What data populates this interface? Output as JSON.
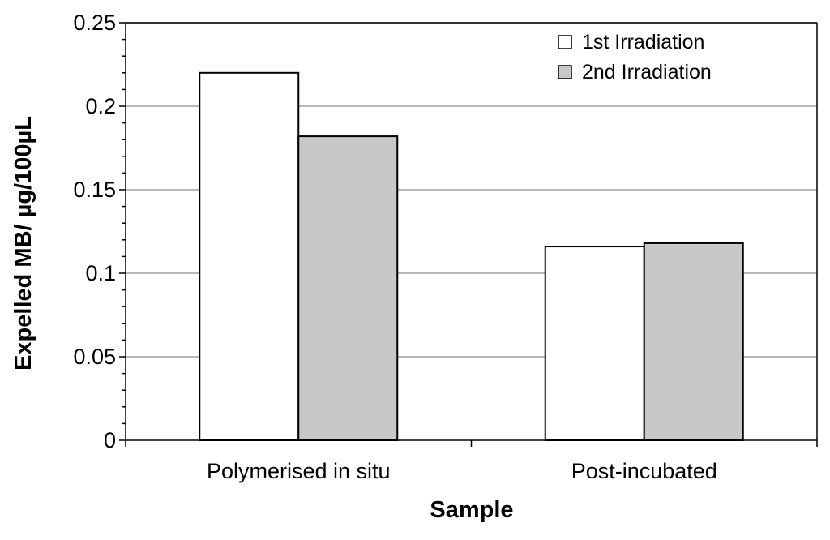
{
  "chart_data": {
    "type": "bar",
    "title": "",
    "xlabel": "Sample",
    "ylabel": "Expelled MB/ µg/100µL",
    "categories": [
      "Polymerised in situ",
      "Post-incubated"
    ],
    "series": [
      {
        "name": "1st Irradiation",
        "values": [
          0.22,
          0.116
        ],
        "color": "#ffffff"
      },
      {
        "name": "2nd Irradiation",
        "values": [
          0.182,
          0.118
        ],
        "color": "#c8c8c8"
      }
    ],
    "ylim": [
      0,
      0.25
    ],
    "yticks": [
      "0",
      "0.05",
      "0.1",
      "0.15",
      "0.2",
      "0.25"
    ],
    "ytick_values": [
      0,
      0.05,
      0.1,
      0.15,
      0.2,
      0.25
    ],
    "grid": true,
    "legend_position": "top-right",
    "colors": {
      "gridline": "#a0a0a0",
      "axis": "#000000"
    }
  }
}
